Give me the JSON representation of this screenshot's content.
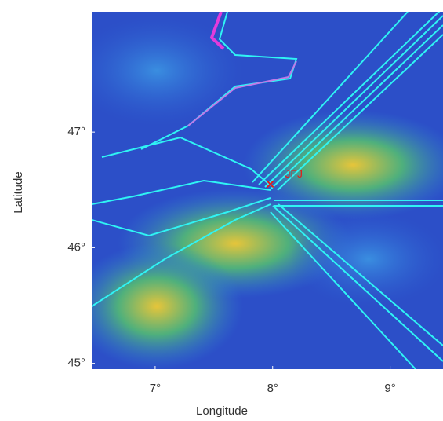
{
  "map": {
    "xlabel": "Longitude",
    "ylabel": "Latitude",
    "xlim": [
      6.46,
      9.45
    ],
    "ylim": [
      44.95,
      48.04
    ],
    "xticks": [
      {
        "value": 7,
        "label": "7°"
      },
      {
        "value": 8,
        "label": "8°"
      },
      {
        "value": 9,
        "label": "9°"
      }
    ],
    "yticks": [
      {
        "value": 45,
        "label": "45°"
      },
      {
        "value": 46,
        "label": "46°"
      },
      {
        "value": 47,
        "label": "47°"
      }
    ],
    "site": {
      "label": "JFJ",
      "lon": 7.98,
      "lat": 46.55,
      "color": "#e0201b"
    }
  }
}
